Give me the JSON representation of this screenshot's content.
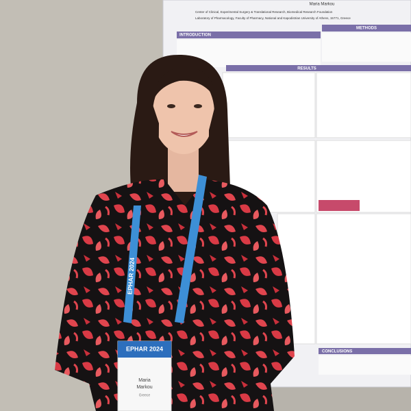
{
  "poster": {
    "author": "Maria Markou",
    "affiliation_1": "Center of Clinical, Experimental Surgery & Translational Research, Biomedical Research Foundation",
    "affiliation_2": "Laboratory of Pharmacology, Faculty of Pharmacy, National and Kapodistrian University of Athens, 15771, Greece",
    "sections": [
      "INTRODUCTION",
      "METHODS",
      "RESULTS",
      "CONCLUSIONS"
    ]
  },
  "badge": {
    "event": "EPHAR 2024",
    "name_first": "Maria",
    "name_last": "Markou",
    "country": "Greece"
  },
  "lanyard": {
    "text": "EPHAR 2024"
  }
}
